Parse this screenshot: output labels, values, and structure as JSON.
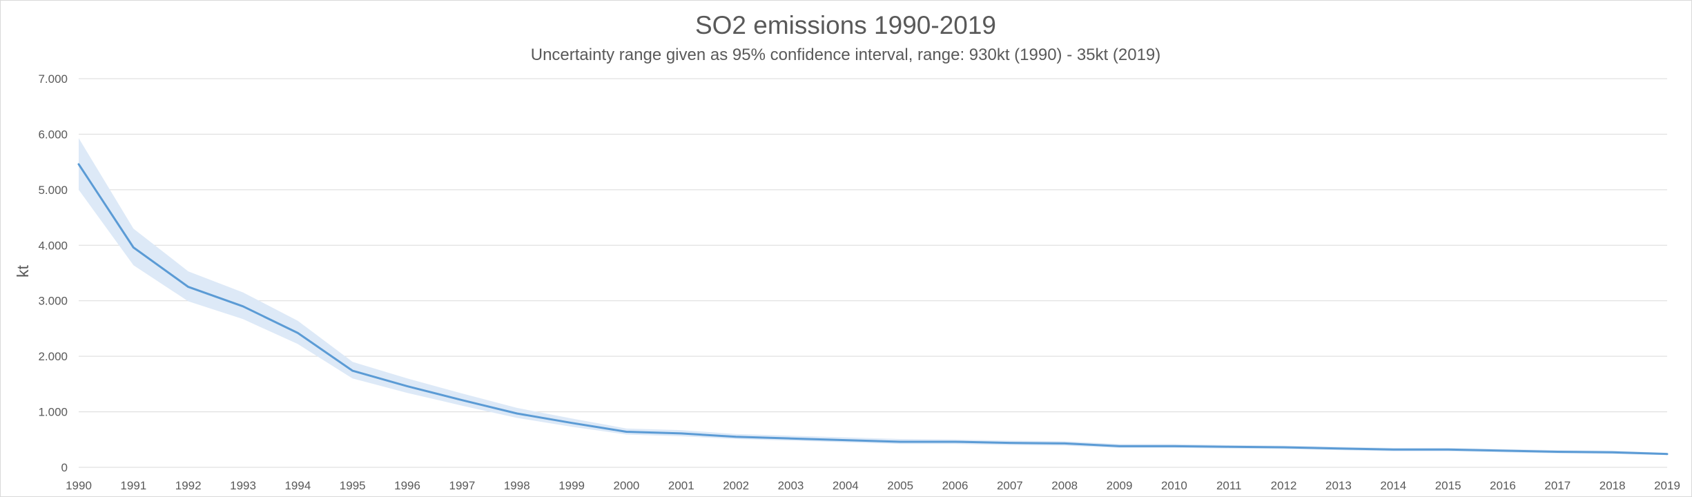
{
  "chart_data": {
    "type": "line",
    "title": "SO2 emissions 1990-2019",
    "subtitle": "Uncertainty range given as 95% confidence interval, range: 930kt (1990) - 35kt (2019)",
    "xlabel": "",
    "ylabel": "kt",
    "ylim": [
      0,
      7000
    ],
    "yticks": [
      0,
      1000,
      2000,
      3000,
      4000,
      5000,
      6000,
      7000
    ],
    "ytick_labels": [
      "0",
      "1.000",
      "2.000",
      "3.000",
      "4.000",
      "5.000",
      "6.000",
      "7.000"
    ],
    "x": [
      "1990",
      "1991",
      "1992",
      "1993",
      "1994",
      "1995",
      "1996",
      "1997",
      "1998",
      "1999",
      "2000",
      "2001",
      "2002",
      "2003",
      "2004",
      "2005",
      "2006",
      "2007",
      "2008",
      "2009",
      "2010",
      "2011",
      "2012",
      "2013",
      "2014",
      "2015",
      "2016",
      "2017",
      "2018",
      "2019"
    ],
    "grid": true,
    "legend": "none",
    "series": [
      {
        "values": [
          5460,
          3960,
          3250,
          2900,
          2420,
          1740,
          1460,
          1210,
          970,
          800,
          640,
          610,
          550,
          520,
          490,
          460,
          460,
          440,
          430,
          380,
          380,
          370,
          360,
          340,
          320,
          320,
          300,
          280,
          270,
          240
        ],
        "upper": [
          5930,
          4300,
          3530,
          3150,
          2640,
          1900,
          1600,
          1330,
          1070,
          880,
          700,
          670,
          600,
          570,
          540,
          510,
          500,
          480,
          470,
          420,
          420,
          400,
          390,
          370,
          350,
          350,
          330,
          310,
          300,
          260
        ],
        "lower": [
          5000,
          3640,
          2990,
          2670,
          2220,
          1600,
          1340,
          1110,
          890,
          730,
          590,
          560,
          510,
          480,
          450,
          420,
          420,
          400,
          390,
          350,
          350,
          340,
          330,
          310,
          290,
          290,
          270,
          250,
          240,
          220
        ]
      }
    ],
    "colors": {
      "line": "#5b9bd5",
      "band": "#dde9f7",
      "grid": "#d9d9d9",
      "text": "#595959"
    }
  }
}
